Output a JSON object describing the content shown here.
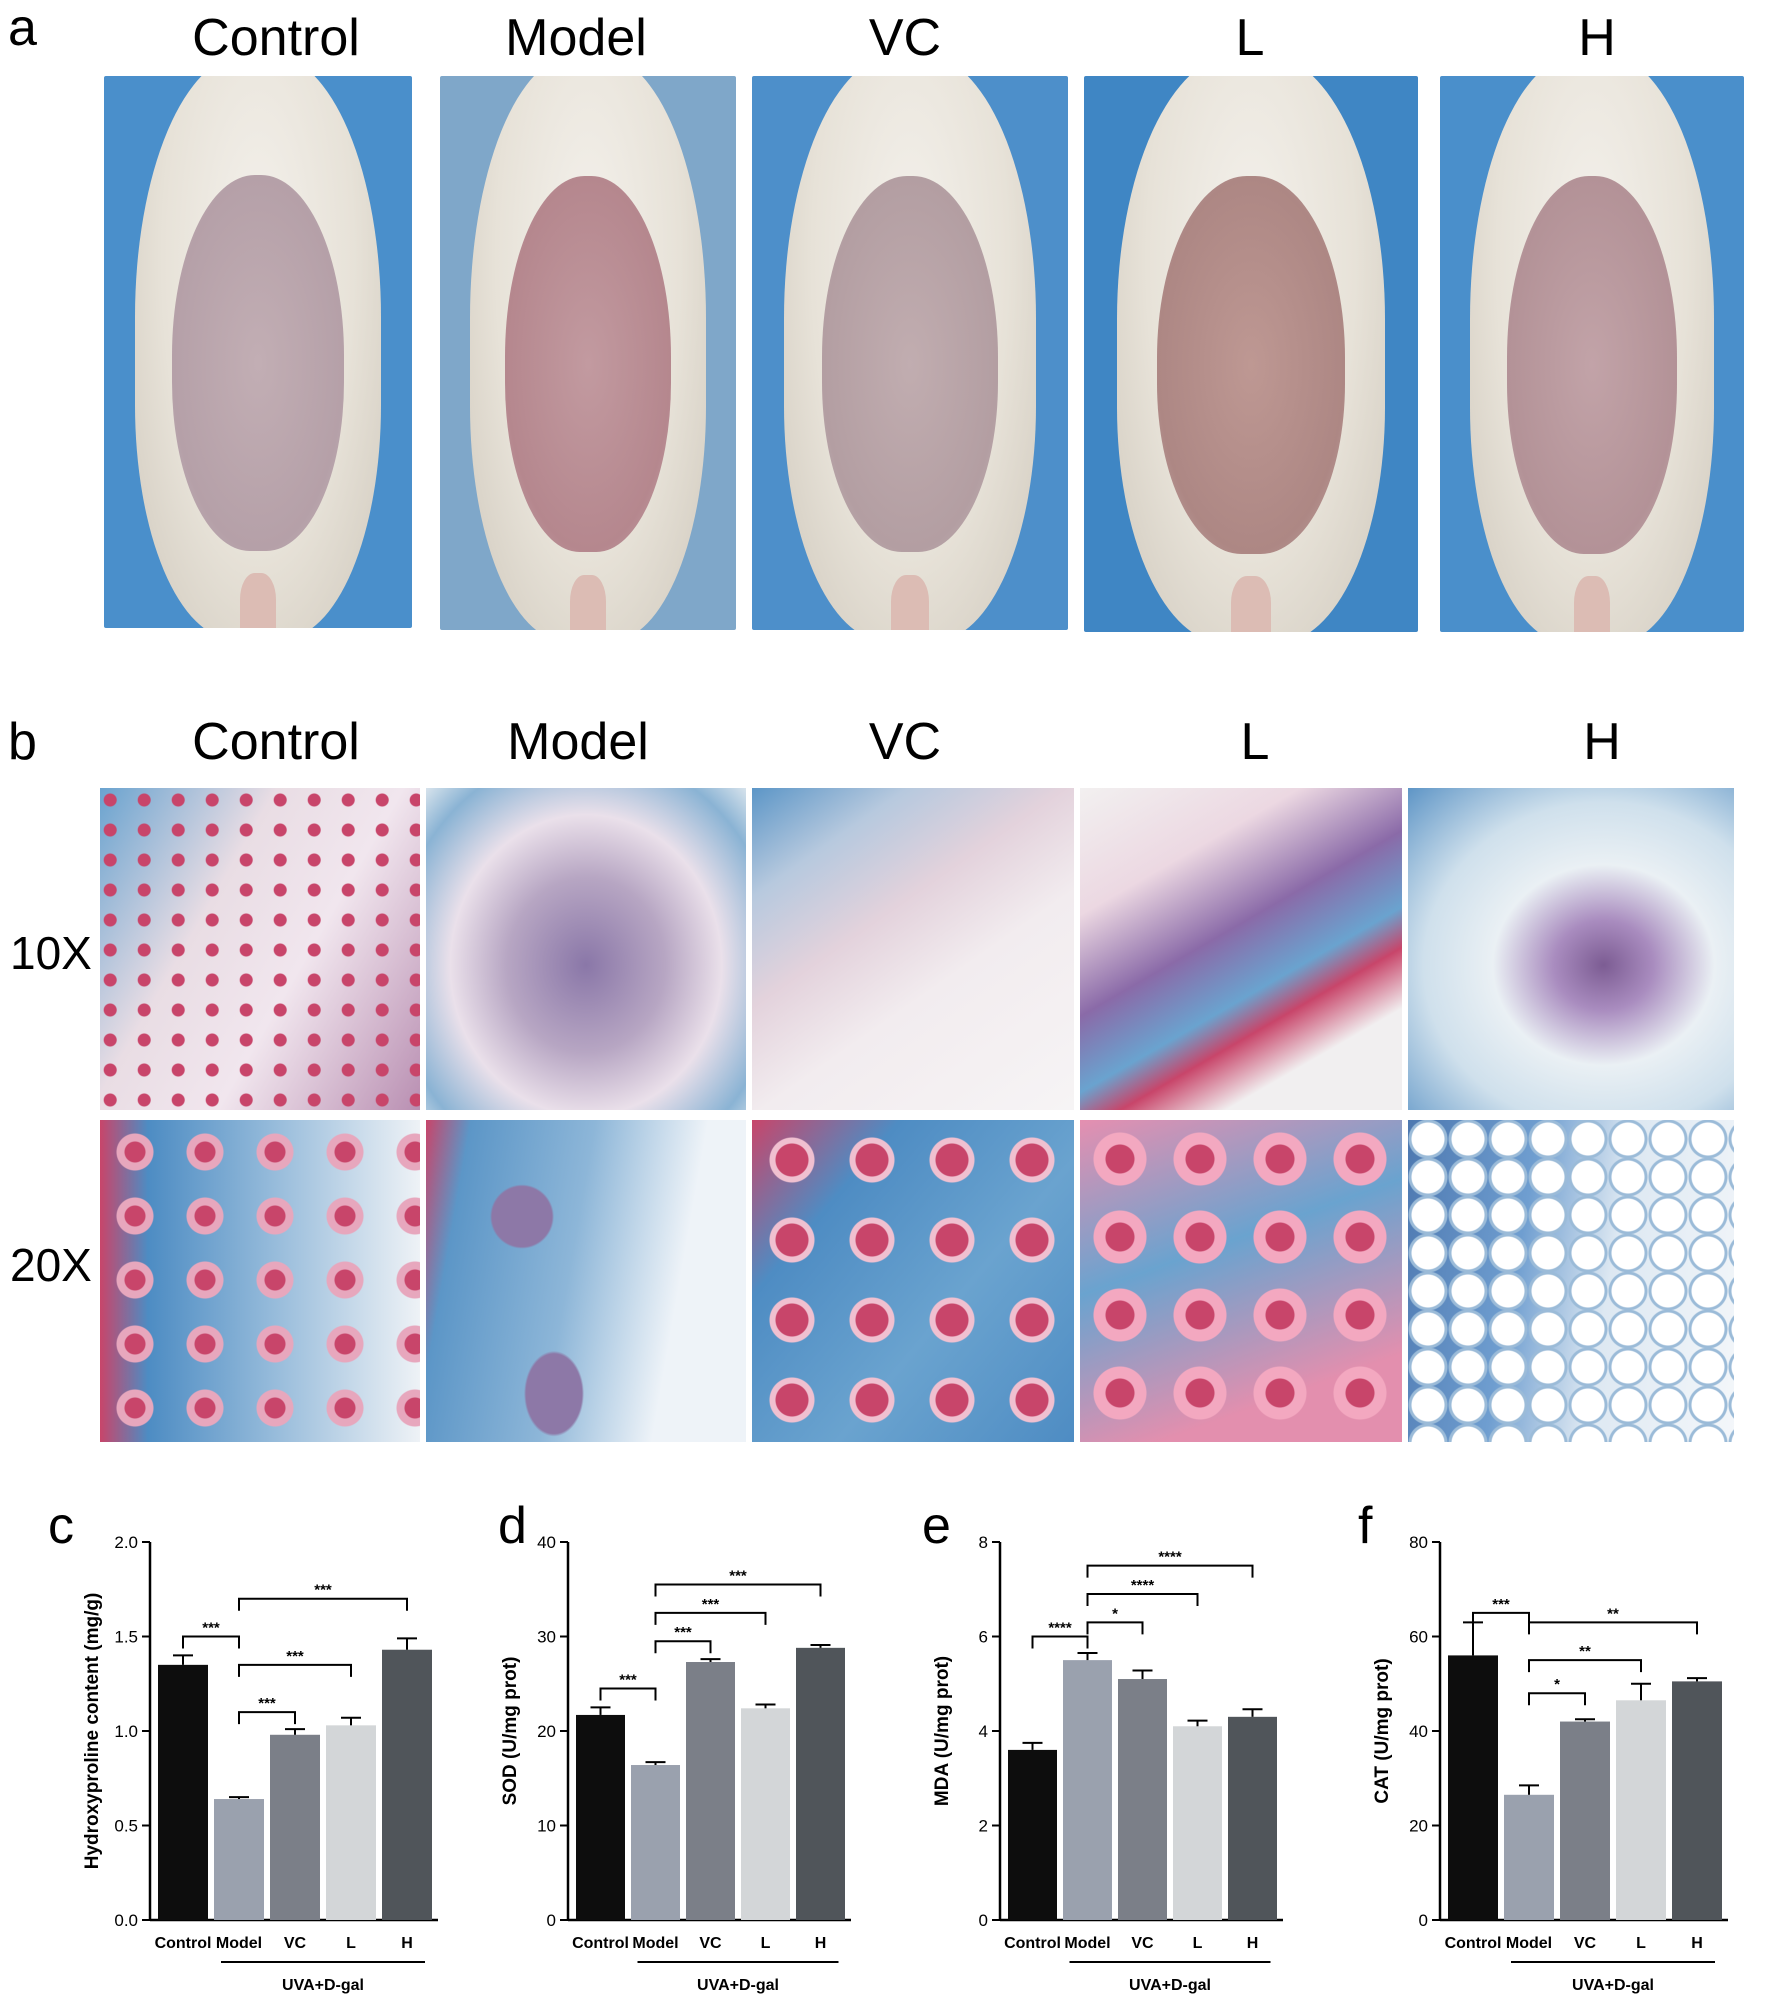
{
  "panels": {
    "a_letter": "a",
    "b_letter": "b",
    "c_letter": "c",
    "d_letter": "d",
    "e_letter": "e",
    "f_letter": "f"
  },
  "groups": [
    "Control",
    "Model",
    "VC",
    "L",
    "H"
  ],
  "magnifications": [
    "10X",
    "20X"
  ],
  "colors": {
    "photo_bg": "#3f86c4",
    "belly_control": "#b9a7ad",
    "belly_model": "#b78d93",
    "belly_vc": "#b7a3a6",
    "belly_l": "#b7938f",
    "belly_h": "#b89ba0",
    "stain_blue": "#6aa3cf",
    "stain_red": "#c8456a",
    "stain_purple": "#7c5c93",
    "bar_control": "#0d0d0d",
    "bar_model": "#9aa1ae",
    "bar_vc": "#7b7f88",
    "bar_l": "#d3d6d8",
    "bar_h": "#50555a"
  },
  "chart_data": [
    {
      "id": "c",
      "type": "bar",
      "categories": [
        "Control",
        "Model",
        "VC",
        "L",
        "H"
      ],
      "values": [
        1.35,
        0.64,
        0.98,
        1.03,
        1.43
      ],
      "errors": [
        0.05,
        0.01,
        0.03,
        0.04,
        0.06
      ],
      "ylabel": "Hydroxyproline content  (mg/g)",
      "ylim": [
        0,
        2.0
      ],
      "yticks": [
        "0.0",
        "0.5",
        "1.0",
        "1.5",
        "2.0"
      ],
      "ytick_values": [
        0,
        0.5,
        1.0,
        1.5,
        2.0
      ],
      "group_label": "UVA+D-gal",
      "significance": [
        {
          "from": 0,
          "to": 1,
          "label": "***",
          "y": 1.5
        },
        {
          "from": 1,
          "to": 2,
          "label": "***",
          "y": 1.1
        },
        {
          "from": 1,
          "to": 3,
          "label": "***",
          "y": 1.35
        },
        {
          "from": 1,
          "to": 4,
          "label": "***",
          "y": 1.7
        }
      ]
    },
    {
      "id": "d",
      "type": "bar",
      "categories": [
        "Control",
        "Model",
        "VC",
        "L",
        "H"
      ],
      "values": [
        21.7,
        16.4,
        27.3,
        22.4,
        28.8
      ],
      "errors": [
        0.8,
        0.3,
        0.3,
        0.4,
        0.3
      ],
      "ylabel": "SOD   (U/mg prot)",
      "ylim": [
        0,
        40
      ],
      "yticks": [
        "0",
        "10",
        "20",
        "30",
        "40"
      ],
      "ytick_values": [
        0,
        10,
        20,
        30,
        40
      ],
      "group_label": "UVA+D-gal",
      "significance": [
        {
          "from": 0,
          "to": 1,
          "label": "***",
          "y": 24.5
        },
        {
          "from": 1,
          "to": 2,
          "label": "***",
          "y": 29.5
        },
        {
          "from": 1,
          "to": 3,
          "label": "***",
          "y": 32.5
        },
        {
          "from": 1,
          "to": 4,
          "label": "***",
          "y": 35.5
        }
      ]
    },
    {
      "id": "e",
      "type": "bar",
      "categories": [
        "Control",
        "Model",
        "VC",
        "L",
        "H"
      ],
      "values": [
        3.6,
        5.5,
        5.1,
        4.1,
        4.3
      ],
      "errors": [
        0.15,
        0.15,
        0.18,
        0.12,
        0.16
      ],
      "ylabel": "MDA  (U/mg prot)",
      "ylim": [
        0,
        8
      ],
      "yticks": [
        "0",
        "2",
        "4",
        "6",
        "8"
      ],
      "ytick_values": [
        0,
        2,
        4,
        6,
        8
      ],
      "group_label": "UVA+D-gal",
      "significance": [
        {
          "from": 0,
          "to": 1,
          "label": "****",
          "y": 6.0
        },
        {
          "from": 1,
          "to": 2,
          "label": "*",
          "y": 6.3
        },
        {
          "from": 1,
          "to": 3,
          "label": "****",
          "y": 6.9
        },
        {
          "from": 1,
          "to": 4,
          "label": "****",
          "y": 7.5
        }
      ]
    },
    {
      "id": "f",
      "type": "bar",
      "categories": [
        "Control",
        "Model",
        "VC",
        "L",
        "H"
      ],
      "values": [
        56,
        26.5,
        42,
        46.5,
        50.5
      ],
      "errors": [
        7,
        2,
        0.5,
        3.5,
        0.7
      ],
      "ylabel": "CAT  (U/mg prot)",
      "ylim": [
        0,
        80
      ],
      "yticks": [
        "0",
        "20",
        "40",
        "60",
        "80"
      ],
      "ytick_values": [
        0,
        20,
        40,
        60,
        80
      ],
      "group_label": "UVA+D-gal",
      "significance": [
        {
          "from": 0,
          "to": 1,
          "label": "***",
          "y": 65
        },
        {
          "from": 1,
          "to": 2,
          "label": "*",
          "y": 48
        },
        {
          "from": 1,
          "to": 3,
          "label": "**",
          "y": 55
        },
        {
          "from": 1,
          "to": 4,
          "label": "**",
          "y": 63
        }
      ]
    }
  ]
}
